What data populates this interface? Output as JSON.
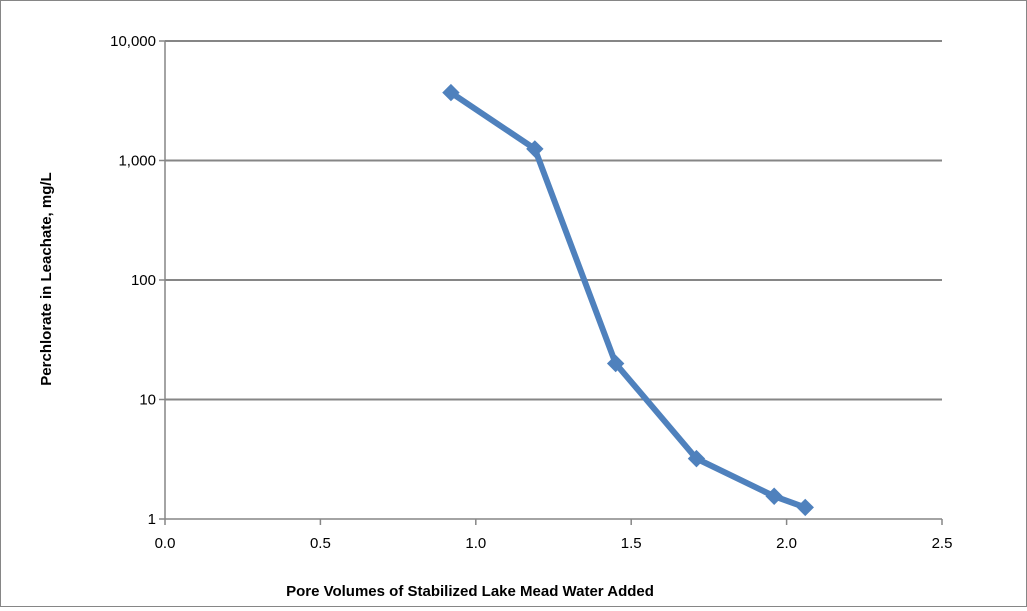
{
  "chart_data": {
    "type": "line",
    "title": "",
    "xlabel": "Pore Volumes of Stabilized  Lake Mead  Water Added",
    "ylabel": "Perchlorate in Leachate, mg/L",
    "xlim": [
      0.0,
      2.5
    ],
    "ylim": [
      1,
      10000
    ],
    "y_scale": "log",
    "x_ticks": [
      "0.0",
      "0.5",
      "1.0",
      "1.5",
      "2.0",
      "2.5"
    ],
    "y_ticks": [
      "1",
      "10",
      "100",
      "1,000",
      "10,000"
    ],
    "grid": "horizontal",
    "legend": "none",
    "series": [
      {
        "color": "#4f81bd",
        "marker": "diamond",
        "x": [
          0.92,
          1.19,
          1.45,
          1.71,
          1.96,
          2.06
        ],
        "y": [
          3700,
          1250,
          20,
          3.2,
          1.55,
          1.25
        ]
      }
    ]
  }
}
